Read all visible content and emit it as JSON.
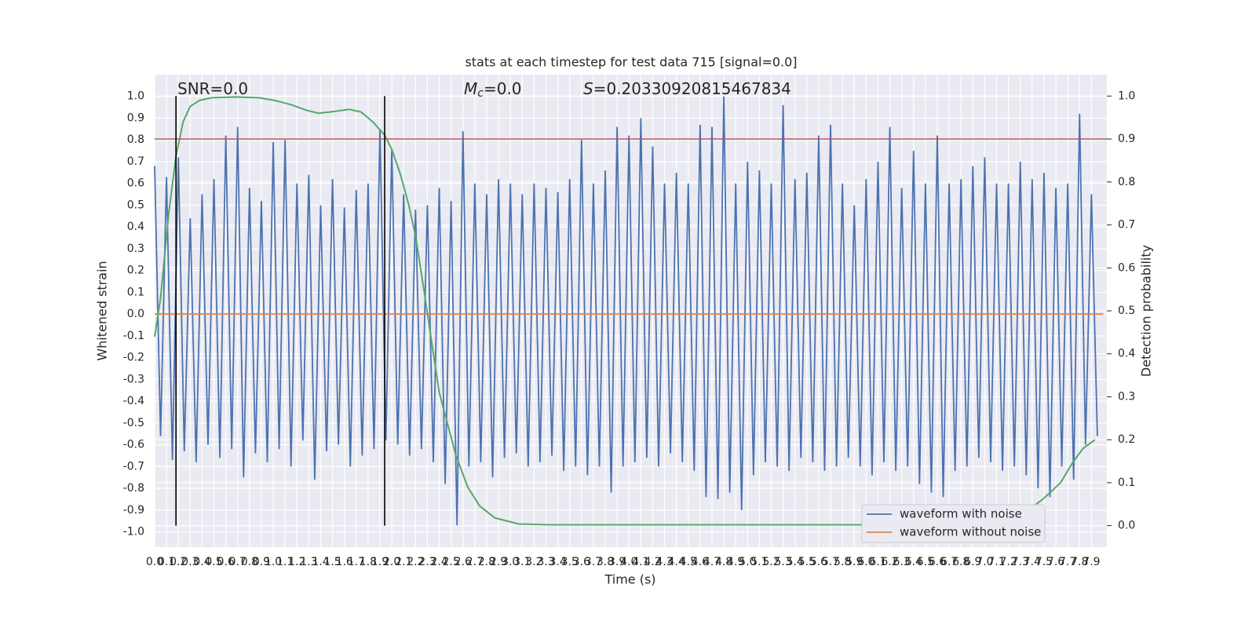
{
  "chart_data": {
    "type": "line",
    "title": "stats at each timestep for test data 715 [signal=0.0]",
    "xlabel": "Time (s)",
    "ylabel": "Whitened strain",
    "y2label": "Detection probability",
    "annotations": [
      {
        "text": "SNR=0.0"
      },
      {
        "symbol": "M",
        "subscript": "c",
        "text": "=0.0"
      },
      {
        "symbol": "S",
        "text": "=0.20330920815467834"
      }
    ],
    "xlim": [
      0,
      8.03
    ],
    "ylim": [
      -1.07,
      1.1
    ],
    "y2lim": [
      -0.05,
      1.05
    ],
    "grid": true,
    "legend": "lower right",
    "xticks": [
      {
        "value": 0,
        "label": "0.0"
      },
      0.1,
      0.2,
      0.3,
      0.4,
      0.5,
      0.6,
      0.7,
      0.8,
      0.9,
      {
        "value": 1,
        "label": "1.0"
      },
      1.1,
      1.2,
      1.3,
      1.4,
      1.5,
      1.6,
      1.7,
      1.8,
      1.9,
      {
        "value": 2,
        "label": "2.0"
      },
      2.1,
      2.2,
      2.3,
      2.4,
      2.5,
      2.6,
      2.7,
      2.8,
      2.9,
      {
        "value": 3,
        "label": "3.0"
      },
      3.1,
      3.2,
      3.3,
      3.4,
      3.5,
      3.6,
      3.7,
      3.8,
      3.9,
      {
        "value": 4,
        "label": "4.0"
      },
      4.1,
      4.2,
      4.3,
      4.4,
      4.5,
      4.6,
      4.7,
      4.8,
      4.9,
      {
        "value": 5,
        "label": "5.0"
      },
      5.1,
      5.2,
      5.3,
      5.4,
      5.5,
      5.6,
      5.7,
      5.8,
      5.9,
      {
        "value": 6,
        "label": "6.0"
      },
      6.1,
      6.2,
      6.3,
      6.4,
      6.5,
      6.6,
      6.7,
      6.8,
      6.9,
      {
        "value": 7,
        "label": "7.0"
      },
      7.1,
      7.2,
      7.3,
      7.4,
      7.5,
      7.6,
      7.7,
      7.8,
      7.9
    ],
    "yticks": [
      {
        "value": -1,
        "label": "-1.0"
      },
      -0.9,
      -0.8,
      -0.7,
      -0.6,
      -0.5,
      -0.4,
      -0.3,
      -0.2,
      -0.1,
      {
        "value": 0,
        "label": "0.0"
      },
      0.1,
      0.2,
      0.3,
      0.4,
      0.5,
      0.6,
      0.7,
      0.8,
      0.9,
      {
        "value": 1,
        "label": "1.0"
      }
    ],
    "y2ticks": [
      {
        "value": 0,
        "label": "0.0"
      },
      0.1,
      0.2,
      0.3,
      0.4,
      0.5,
      0.6,
      0.7,
      0.8,
      0.9,
      {
        "value": 1,
        "label": "1.0"
      }
    ],
    "series": [
      {
        "name": "waveform with noise",
        "color": "#4c72b0",
        "x": [
          0,
          0.05,
          0.1,
          0.15,
          0.2,
          0.25,
          0.3,
          0.35,
          0.4,
          0.45,
          0.5,
          0.55,
          0.6,
          0.65,
          0.7,
          0.75,
          0.8,
          0.85,
          0.9,
          0.95,
          1,
          1.05,
          1.1,
          1.15,
          1.2,
          1.25,
          1.3,
          1.35,
          1.4,
          1.45,
          1.5,
          1.55,
          1.6,
          1.65,
          1.7,
          1.75,
          1.8,
          1.85,
          1.9,
          1.95,
          2,
          2.05,
          2.1,
          2.15,
          2.2,
          2.25,
          2.3,
          2.35,
          2.4,
          2.45,
          2.5,
          2.55,
          2.6,
          2.65,
          2.7,
          2.75,
          2.8,
          2.85,
          2.9,
          2.95,
          3,
          3.05,
          3.1,
          3.15,
          3.2,
          3.25,
          3.3,
          3.35,
          3.4,
          3.45,
          3.5,
          3.55,
          3.6,
          3.65,
          3.7,
          3.75,
          3.8,
          3.85,
          3.9,
          3.95,
          4,
          4.05,
          4.1,
          4.15,
          4.2,
          4.25,
          4.3,
          4.35,
          4.4,
          4.45,
          4.5,
          4.55,
          4.6,
          4.65,
          4.7,
          4.75,
          4.8,
          4.85,
          4.9,
          4.95,
          5,
          5.05,
          5.1,
          5.15,
          5.2,
          5.25,
          5.3,
          5.35,
          5.4,
          5.45,
          5.5,
          5.55,
          5.6,
          5.65,
          5.7,
          5.75,
          5.8,
          5.85,
          5.9,
          5.95,
          6,
          6.05,
          6.1,
          6.15,
          6.2,
          6.25,
          6.3,
          6.35,
          6.4,
          6.45,
          6.5,
          6.55,
          6.6,
          6.65,
          6.7,
          6.75,
          6.8,
          6.85,
          6.9,
          6.95,
          7,
          7.05,
          7.1,
          7.15,
          7.2,
          7.25,
          7.3,
          7.35,
          7.4,
          7.45,
          7.5,
          7.55,
          7.6,
          7.65,
          7.7,
          7.75,
          7.8,
          7.85,
          7.9,
          7.95
        ],
        "values": [
          0.68,
          -0.56,
          0.63,
          -0.67,
          0.72,
          -0.63,
          0.44,
          -0.68,
          0.55,
          -0.6,
          0.62,
          -0.66,
          0.82,
          -0.62,
          0.86,
          -0.75,
          0.58,
          -0.64,
          0.52,
          -0.68,
          0.79,
          -0.62,
          0.8,
          -0.7,
          0.6,
          -0.58,
          0.64,
          -0.76,
          0.5,
          -0.63,
          0.62,
          -0.6,
          0.49,
          -0.7,
          0.57,
          -0.65,
          0.6,
          -0.62,
          0.85,
          -0.58,
          0.76,
          -0.6,
          0.55,
          -0.65,
          0.48,
          -0.62,
          0.5,
          -0.68,
          0.58,
          -0.78,
          0.52,
          -0.97,
          0.84,
          -0.7,
          0.6,
          -0.68,
          0.55,
          -0.75,
          0.62,
          -0.66,
          0.6,
          -0.64,
          0.55,
          -0.7,
          0.6,
          -0.68,
          0.58,
          -0.65,
          0.56,
          -0.72,
          0.62,
          -0.7,
          0.8,
          -0.74,
          0.6,
          -0.7,
          0.66,
          -0.82,
          0.86,
          -0.7,
          0.82,
          -0.68,
          0.9,
          -0.66,
          0.77,
          -0.7,
          0.6,
          -0.64,
          0.65,
          -0.68,
          0.6,
          -0.72,
          0.87,
          -0.84,
          0.86,
          -0.85,
          1.0,
          -0.82,
          0.6,
          -0.9,
          0.7,
          -0.74,
          0.66,
          -0.68,
          0.6,
          -0.7,
          0.96,
          -0.72,
          0.62,
          -0.66,
          0.65,
          -0.68,
          0.82,
          -0.72,
          0.87,
          -0.7,
          0.6,
          -0.66,
          0.5,
          -0.7,
          0.62,
          -0.74,
          0.7,
          -0.68,
          0.86,
          -0.72,
          0.58,
          -0.7,
          0.75,
          -0.78,
          0.6,
          -0.82,
          0.82,
          -0.84,
          0.6,
          -0.72,
          0.62,
          -0.7,
          0.68,
          -0.66,
          0.72,
          -0.68,
          0.6,
          -0.72,
          0.6,
          -0.7,
          0.7,
          -0.74,
          0.62,
          -0.8,
          0.65,
          -0.84,
          0.58,
          -0.7,
          0.6,
          -0.76,
          0.92,
          -0.6,
          0.55,
          -0.56
        ]
      },
      {
        "name": "waveform without noise",
        "color": "#dd8452",
        "x": [
          0,
          8.0
        ],
        "values": [
          0,
          0
        ]
      },
      {
        "color": "#55a868",
        "axis": "y2",
        "x": [
          0,
          0.05,
          0.12,
          0.18,
          0.24,
          0.3,
          0.38,
          0.48,
          0.68,
          0.88,
          1.01,
          1.15,
          1.28,
          1.38,
          1.48,
          1.64,
          1.74,
          1.84,
          1.94,
          2.0,
          2.07,
          2.14,
          2.2,
          2.27,
          2.34,
          2.4,
          2.47,
          2.54,
          2.64,
          2.74,
          2.87,
          3.07,
          3.33,
          7.04,
          7.24,
          7.37,
          7.5,
          7.64,
          7.74,
          7.83,
          7.93
        ],
        "values": [
          0.44,
          0.53,
          0.73,
          0.86,
          0.94,
          0.976,
          0.99,
          0.996,
          0.998,
          0.996,
          0.99,
          0.98,
          0.967,
          0.96,
          0.963,
          0.969,
          0.963,
          0.94,
          0.909,
          0.876,
          0.82,
          0.75,
          0.675,
          0.55,
          0.42,
          0.31,
          0.237,
          0.164,
          0.09,
          0.046,
          0.018,
          0.004,
          0.002,
          0.002,
          0.018,
          0.036,
          0.064,
          0.1,
          0.146,
          0.18,
          0.2
        ]
      }
    ],
    "hlines": [
      {
        "value": 0.9,
        "axis": "y2",
        "color": "#c44e52"
      }
    ],
    "vlines": [
      {
        "value": 0.18,
        "ymin": 0,
        "ymax": 1,
        "axis": "y2",
        "color": "#000000"
      },
      {
        "value": 1.94,
        "ymin": 0,
        "ymax": 1,
        "axis": "y2",
        "color": "#000000"
      }
    ]
  }
}
